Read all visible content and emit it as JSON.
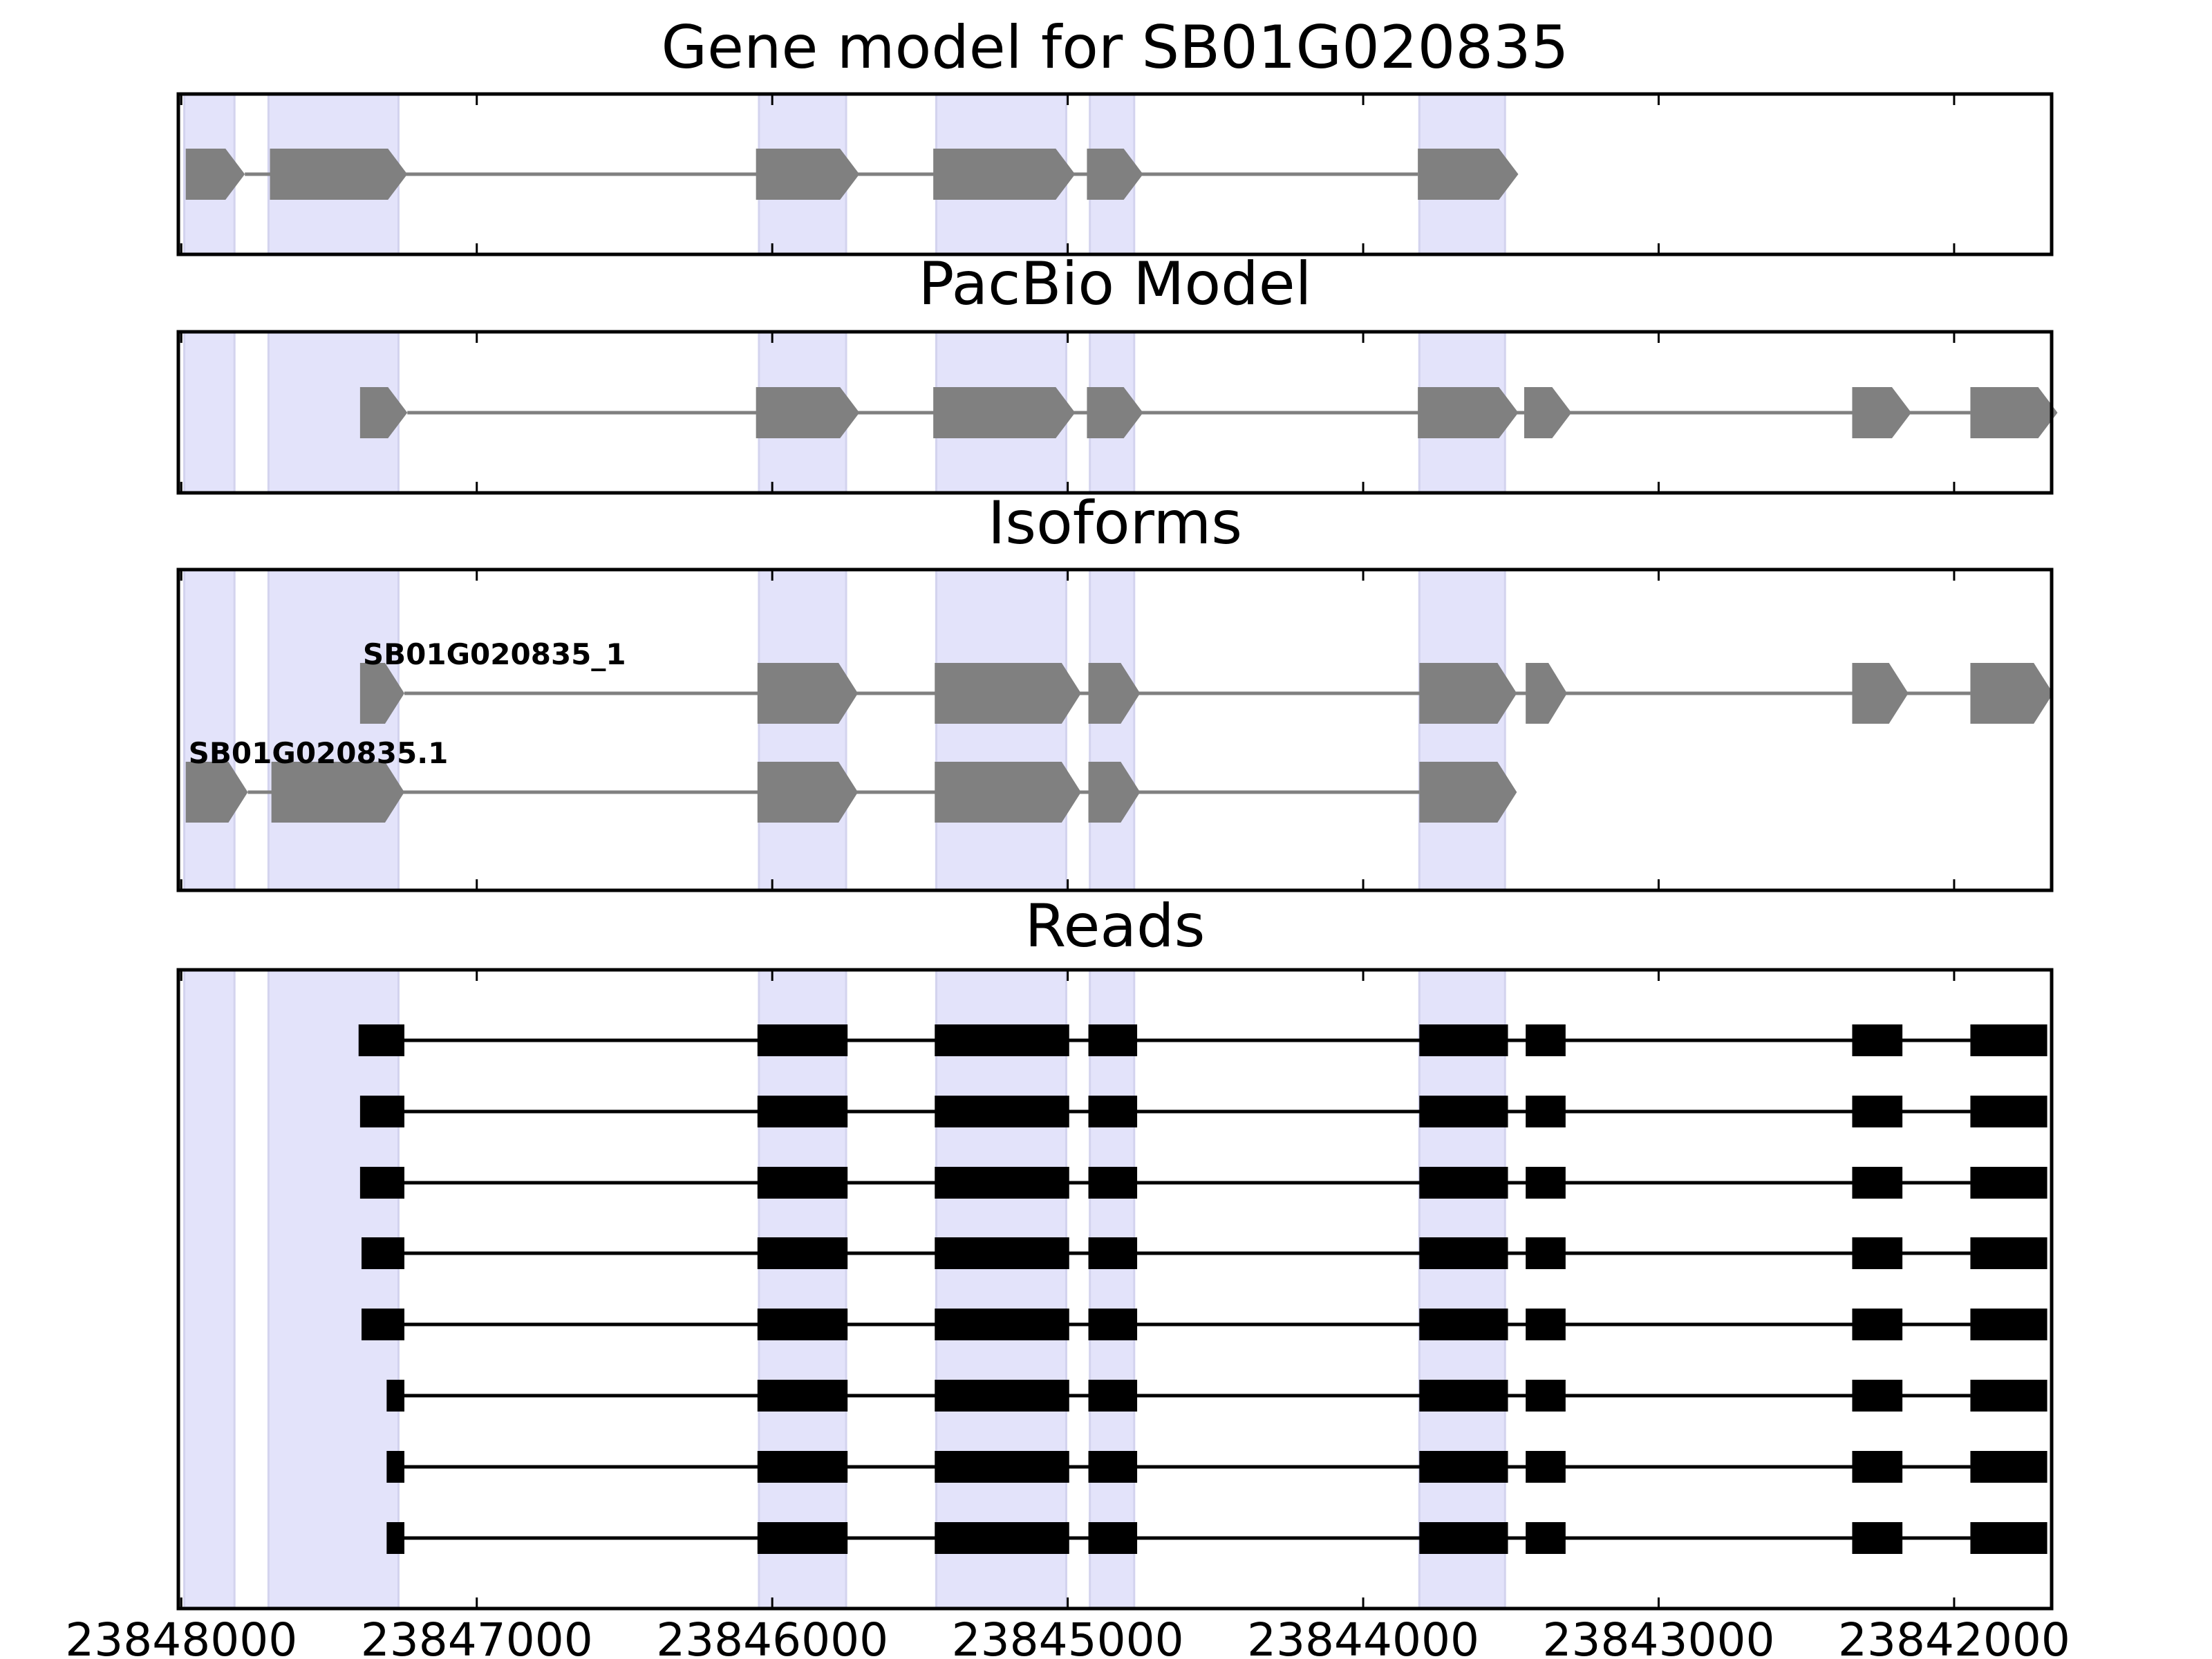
{
  "chart_data": {
    "type": "gene-model",
    "x_axis": {
      "range": [
        23848010,
        23841670
      ],
      "reversed": true,
      "ticks": [
        23848000,
        23847000,
        23846000,
        23845000,
        23844000,
        23843000,
        23842000
      ],
      "tick_labels": [
        "23848000",
        "23847000",
        "23846000",
        "23845000",
        "23844000",
        "23843000",
        "23842000"
      ]
    },
    "highlight_color": "#e3e3fa",
    "highlight_regions": [
      [
        23847990,
        23847820
      ],
      [
        23847705,
        23847265
      ],
      [
        23846045,
        23845750
      ],
      [
        23845445,
        23845005
      ],
      [
        23844925,
        23844775
      ],
      [
        23843810,
        23843520
      ]
    ],
    "panels": [
      {
        "title": "Gene model for SB01G020835",
        "strand": "-",
        "color": "#808080",
        "tracks": [
          {
            "label": "",
            "exons": [
              [
                23847985,
                23847785
              ],
              [
                23847700,
                23847235
              ],
              [
                23846055,
                23845705
              ],
              [
                23845455,
                23844975
              ],
              [
                23844935,
                23844745
              ],
              [
                23843815,
                23843475
              ]
            ]
          }
        ]
      },
      {
        "title": "PacBio Model",
        "strand": "-",
        "color": "#808080",
        "tracks": [
          {
            "label": "",
            "exons": [
              [
                23847395,
                23847235
              ],
              [
                23846055,
                23845705
              ],
              [
                23845455,
                23844975
              ],
              [
                23844935,
                23844745
              ],
              [
                23843815,
                23843475
              ],
              [
                23843455,
                23843295
              ],
              [
                23842345,
                23842145
              ],
              [
                23841945,
                23841650
              ]
            ]
          }
        ]
      },
      {
        "title": "Isoforms",
        "strand": "-",
        "color": "#808080",
        "tracks": [
          {
            "label": "SB01G020835_1",
            "exons": [
              [
                23847395,
                23847245
              ],
              [
                23846050,
                23845710
              ],
              [
                23845450,
                23844955
              ],
              [
                23844930,
                23844755
              ],
              [
                23843810,
                23843480
              ],
              [
                23843450,
                23843310
              ],
              [
                23842345,
                23842155
              ],
              [
                23841945,
                23841665
              ]
            ]
          },
          {
            "label": "SB01G020835.1",
            "exons": [
              [
                23847985,
                23847775
              ],
              [
                23847695,
                23847245
              ],
              [
                23846050,
                23845710
              ],
              [
                23845450,
                23844955
              ],
              [
                23844930,
                23844755
              ],
              [
                23843810,
                23843480
              ]
            ]
          }
        ]
      },
      {
        "title": "Reads",
        "strand": "",
        "color": "#000000",
        "tracks": [
          {
            "label": "",
            "exons": [
              [
                23847400,
                23847245
              ],
              [
                23846050,
                23845745
              ],
              [
                23845450,
                23844995
              ],
              [
                23844930,
                23844765
              ],
              [
                23843810,
                23843510
              ],
              [
                23843450,
                23843315
              ],
              [
                23842345,
                23842175
              ],
              [
                23841945,
                23841685
              ]
            ]
          },
          {
            "label": "",
            "exons": [
              [
                23847395,
                23847245
              ],
              [
                23846050,
                23845745
              ],
              [
                23845450,
                23844995
              ],
              [
                23844930,
                23844765
              ],
              [
                23843810,
                23843510
              ],
              [
                23843450,
                23843315
              ],
              [
                23842345,
                23842175
              ],
              [
                23841945,
                23841685
              ]
            ]
          },
          {
            "label": "",
            "exons": [
              [
                23847395,
                23847245
              ],
              [
                23846050,
                23845745
              ],
              [
                23845450,
                23844995
              ],
              [
                23844930,
                23844765
              ],
              [
                23843810,
                23843510
              ],
              [
                23843450,
                23843315
              ],
              [
                23842345,
                23842175
              ],
              [
                23841945,
                23841685
              ]
            ]
          },
          {
            "label": "",
            "exons": [
              [
                23847390,
                23847245
              ],
              [
                23846050,
                23845745
              ],
              [
                23845450,
                23844995
              ],
              [
                23844930,
                23844765
              ],
              [
                23843810,
                23843510
              ],
              [
                23843450,
                23843315
              ],
              [
                23842345,
                23842175
              ],
              [
                23841945,
                23841685
              ]
            ]
          },
          {
            "label": "",
            "exons": [
              [
                23847390,
                23847245
              ],
              [
                23846050,
                23845745
              ],
              [
                23845450,
                23844995
              ],
              [
                23844930,
                23844765
              ],
              [
                23843810,
                23843510
              ],
              [
                23843450,
                23843315
              ],
              [
                23842345,
                23842175
              ],
              [
                23841945,
                23841685
              ]
            ]
          },
          {
            "label": "",
            "exons": [
              [
                23847305,
                23847245
              ],
              [
                23846050,
                23845745
              ],
              [
                23845450,
                23844995
              ],
              [
                23844930,
                23844765
              ],
              [
                23843810,
                23843510
              ],
              [
                23843450,
                23843315
              ],
              [
                23842345,
                23842175
              ],
              [
                23841945,
                23841685
              ]
            ]
          },
          {
            "label": "",
            "exons": [
              [
                23847305,
                23847245
              ],
              [
                23846050,
                23845745
              ],
              [
                23845450,
                23844995
              ],
              [
                23844930,
                23844765
              ],
              [
                23843810,
                23843510
              ],
              [
                23843450,
                23843315
              ],
              [
                23842345,
                23842175
              ],
              [
                23841945,
                23841685
              ]
            ]
          },
          {
            "label": "",
            "exons": [
              [
                23847305,
                23847245
              ],
              [
                23846050,
                23845745
              ],
              [
                23845450,
                23844995
              ],
              [
                23844930,
                23844765
              ],
              [
                23843810,
                23843510
              ],
              [
                23843450,
                23843315
              ],
              [
                23842345,
                23842175
              ],
              [
                23841945,
                23841685
              ]
            ]
          }
        ]
      }
    ]
  }
}
